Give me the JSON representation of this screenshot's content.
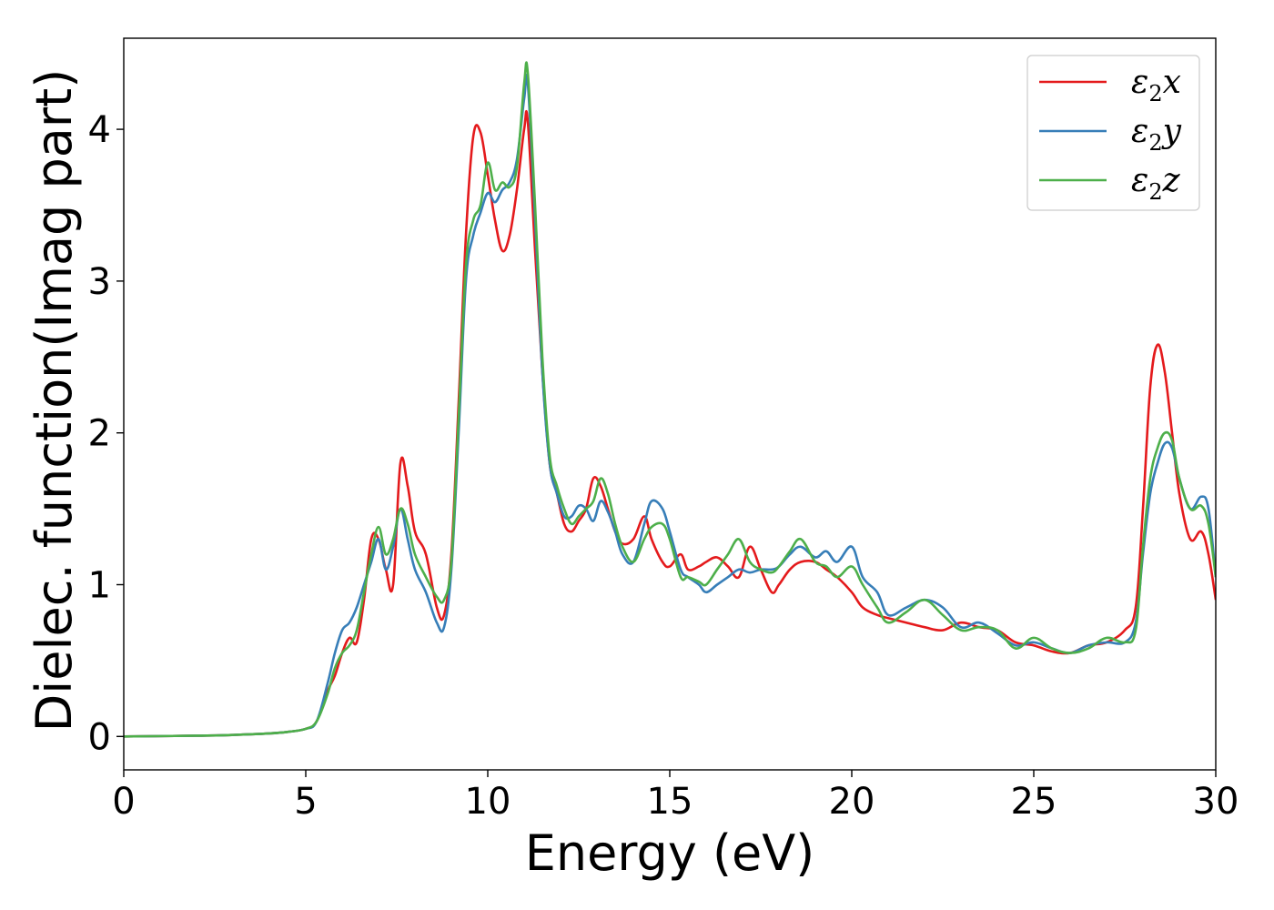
{
  "chart_data": {
    "type": "line",
    "xlabel": "Energy (eV)",
    "ylabel": "Dielec. function(Imag part)",
    "xlim": [
      0,
      30
    ],
    "ylim": [
      -0.22,
      4.6
    ],
    "xticks": [
      0,
      5,
      10,
      15,
      20,
      25,
      30
    ],
    "yticks": [
      0,
      1,
      2,
      3,
      4
    ],
    "grid": false,
    "legend": "top-right",
    "legend_entries": [
      {
        "symbol": "ε",
        "sub": "2",
        "axis": "x"
      },
      {
        "symbol": "ε",
        "sub": "2",
        "axis": "y"
      },
      {
        "symbol": "ε",
        "sub": "2",
        "axis": "z"
      }
    ],
    "series": [
      {
        "name": "ε2x",
        "color": "#e41a1c",
        "x": [
          0,
          2,
          3,
          4,
          4.5,
          5,
          5.3,
          5.6,
          5.8,
          6.0,
          6.2,
          6.4,
          6.6,
          6.8,
          7.0,
          7.2,
          7.4,
          7.6,
          7.8,
          8.0,
          8.3,
          8.6,
          8.8,
          9.0,
          9.2,
          9.4,
          9.6,
          9.8,
          10.0,
          10.2,
          10.4,
          10.6,
          10.8,
          11.0,
          11.1,
          11.3,
          11.5,
          11.7,
          11.9,
          12.1,
          12.3,
          12.5,
          12.7,
          12.9,
          13.1,
          13.3,
          13.5,
          13.7,
          14.0,
          14.3,
          14.5,
          14.8,
          15.0,
          15.3,
          15.5,
          15.8,
          16.0,
          16.3,
          16.6,
          16.9,
          17.2,
          17.5,
          17.8,
          18.0,
          18.3,
          18.6,
          19.0,
          19.3,
          19.6,
          20.0,
          20.3,
          20.7,
          21.0,
          21.5,
          22.0,
          22.5,
          23.0,
          23.5,
          24.0,
          24.5,
          25.0,
          25.5,
          26.0,
          26.5,
          27.0,
          27.5,
          27.8,
          28.0,
          28.2,
          28.4,
          28.6,
          28.8,
          29.0,
          29.3,
          29.6,
          29.8,
          30.0
        ],
        "y": [
          0,
          0.005,
          0.01,
          0.02,
          0.03,
          0.05,
          0.1,
          0.3,
          0.4,
          0.55,
          0.65,
          0.62,
          0.9,
          1.3,
          1.3,
          1.1,
          1.0,
          1.8,
          1.65,
          1.35,
          1.2,
          0.85,
          0.8,
          1.2,
          2.2,
          3.3,
          3.95,
          3.98,
          3.7,
          3.4,
          3.2,
          3.3,
          3.6,
          4.0,
          4.05,
          3.2,
          2.4,
          1.8,
          1.6,
          1.4,
          1.35,
          1.42,
          1.5,
          1.7,
          1.65,
          1.5,
          1.35,
          1.27,
          1.3,
          1.45,
          1.3,
          1.15,
          1.12,
          1.2,
          1.1,
          1.12,
          1.15,
          1.18,
          1.12,
          1.05,
          1.25,
          1.1,
          0.95,
          1.0,
          1.1,
          1.15,
          1.15,
          1.1,
          1.05,
          0.95,
          0.85,
          0.8,
          0.78,
          0.75,
          0.72,
          0.7,
          0.75,
          0.72,
          0.7,
          0.62,
          0.6,
          0.56,
          0.55,
          0.6,
          0.62,
          0.7,
          0.85,
          1.5,
          2.3,
          2.58,
          2.4,
          2.0,
          1.6,
          1.3,
          1.35,
          1.2,
          0.9
        ]
      },
      {
        "name": "ε2y",
        "color": "#377eb8",
        "x": [
          0,
          2,
          3,
          4,
          4.5,
          5,
          5.3,
          5.6,
          5.8,
          6.0,
          6.2,
          6.4,
          6.6,
          6.8,
          7.0,
          7.2,
          7.4,
          7.6,
          7.8,
          8.0,
          8.3,
          8.6,
          8.8,
          9.0,
          9.2,
          9.4,
          9.6,
          9.8,
          10.0,
          10.2,
          10.4,
          10.6,
          10.8,
          11.0,
          11.1,
          11.3,
          11.5,
          11.7,
          11.9,
          12.1,
          12.3,
          12.5,
          12.7,
          12.9,
          13.1,
          13.3,
          13.5,
          13.7,
          14.0,
          14.3,
          14.5,
          14.8,
          15.0,
          15.3,
          15.5,
          15.8,
          16.0,
          16.3,
          16.6,
          16.9,
          17.2,
          17.5,
          17.8,
          18.0,
          18.3,
          18.6,
          19.0,
          19.3,
          19.6,
          20.0,
          20.3,
          20.7,
          21.0,
          21.5,
          22.0,
          22.5,
          23.0,
          23.5,
          24.0,
          24.5,
          25.0,
          25.5,
          26.0,
          26.5,
          27.0,
          27.5,
          27.8,
          28.0,
          28.2,
          28.4,
          28.6,
          28.8,
          29.0,
          29.3,
          29.6,
          29.8,
          30.0
        ],
        "y": [
          0,
          0.005,
          0.01,
          0.02,
          0.03,
          0.05,
          0.1,
          0.35,
          0.55,
          0.7,
          0.75,
          0.85,
          1.0,
          1.15,
          1.3,
          1.1,
          1.25,
          1.5,
          1.3,
          1.1,
          0.95,
          0.75,
          0.72,
          1.1,
          2.0,
          3.0,
          3.3,
          3.45,
          3.58,
          3.52,
          3.6,
          3.65,
          3.8,
          4.2,
          4.3,
          3.4,
          2.4,
          1.8,
          1.6,
          1.45,
          1.45,
          1.52,
          1.5,
          1.42,
          1.55,
          1.48,
          1.35,
          1.2,
          1.15,
          1.4,
          1.55,
          1.5,
          1.35,
          1.1,
          1.05,
          1.0,
          0.95,
          1.0,
          1.05,
          1.1,
          1.08,
          1.1,
          1.1,
          1.12,
          1.2,
          1.25,
          1.18,
          1.22,
          1.15,
          1.25,
          1.05,
          0.95,
          0.8,
          0.85,
          0.9,
          0.85,
          0.72,
          0.75,
          0.68,
          0.6,
          0.62,
          0.58,
          0.55,
          0.6,
          0.62,
          0.62,
          0.75,
          1.2,
          1.6,
          1.8,
          1.93,
          1.9,
          1.7,
          1.5,
          1.58,
          1.5,
          1.05
        ]
      },
      {
        "name": "ε2z",
        "color": "#4daf4a",
        "x": [
          0,
          2,
          3,
          4,
          4.5,
          5,
          5.3,
          5.6,
          5.8,
          6.0,
          6.2,
          6.4,
          6.6,
          6.8,
          7.0,
          7.2,
          7.4,
          7.6,
          7.8,
          8.0,
          8.3,
          8.6,
          8.8,
          9.0,
          9.2,
          9.4,
          9.6,
          9.8,
          10.0,
          10.2,
          10.4,
          10.6,
          10.8,
          11.0,
          11.1,
          11.3,
          11.5,
          11.7,
          11.9,
          12.1,
          12.3,
          12.5,
          12.7,
          12.9,
          13.1,
          13.3,
          13.5,
          13.7,
          14.0,
          14.3,
          14.5,
          14.8,
          15.0,
          15.3,
          15.5,
          15.8,
          16.0,
          16.3,
          16.6,
          16.9,
          17.2,
          17.5,
          17.8,
          18.0,
          18.3,
          18.6,
          19.0,
          19.3,
          19.6,
          20.0,
          20.3,
          20.7,
          21.0,
          21.5,
          22.0,
          22.5,
          23.0,
          23.5,
          24.0,
          24.5,
          25.0,
          25.5,
          26.0,
          26.5,
          27.0,
          27.5,
          27.8,
          28.0,
          28.2,
          28.4,
          28.6,
          28.8,
          29.0,
          29.3,
          29.6,
          29.8,
          30.0
        ],
        "y": [
          0,
          0.005,
          0.01,
          0.02,
          0.03,
          0.05,
          0.1,
          0.28,
          0.45,
          0.55,
          0.6,
          0.7,
          0.95,
          1.2,
          1.38,
          1.2,
          1.3,
          1.5,
          1.4,
          1.2,
          1.05,
          0.92,
          0.9,
          1.15,
          2.1,
          3.1,
          3.4,
          3.5,
          3.78,
          3.6,
          3.65,
          3.62,
          3.75,
          4.3,
          4.37,
          3.5,
          2.5,
          1.85,
          1.65,
          1.5,
          1.4,
          1.45,
          1.5,
          1.55,
          1.7,
          1.6,
          1.4,
          1.25,
          1.15,
          1.3,
          1.38,
          1.4,
          1.3,
          1.05,
          1.05,
          1.02,
          1.0,
          1.1,
          1.2,
          1.3,
          1.15,
          1.1,
          1.08,
          1.12,
          1.22,
          1.3,
          1.15,
          1.12,
          1.05,
          1.12,
          1.0,
          0.85,
          0.75,
          0.82,
          0.9,
          0.8,
          0.7,
          0.72,
          0.7,
          0.58,
          0.65,
          0.58,
          0.55,
          0.58,
          0.65,
          0.62,
          0.7,
          1.25,
          1.7,
          1.9,
          2.0,
          1.95,
          1.7,
          1.5,
          1.52,
          1.4,
          1.05
        ]
      }
    ]
  }
}
